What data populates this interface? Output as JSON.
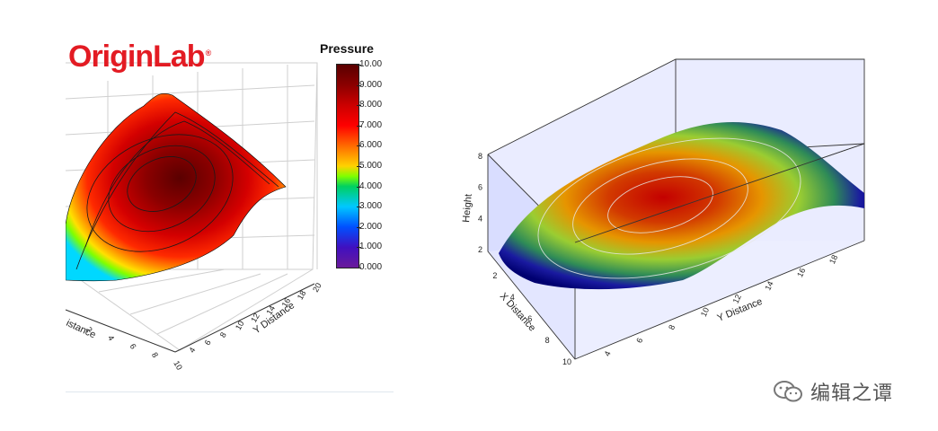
{
  "logo": {
    "text": "OriginLab",
    "mark": "®"
  },
  "watermark": {
    "text": "编辑之谭",
    "icon": "wechat-icon"
  },
  "chart_data": [
    {
      "type": "surface3d",
      "colorbar": {
        "title": "Pressure",
        "ticks": [
          "10.00",
          "9.000",
          "8.000",
          "7.000",
          "6.000",
          "5.000",
          "4.000",
          "3.000",
          "2.000",
          "1.000",
          "0.000"
        ],
        "range": [
          0,
          10
        ],
        "colors": [
          "#5a0000",
          "#cc0000",
          "#ff6a00",
          "#ffd200",
          "#7fff00",
          "#00c8ff",
          "#0050ff",
          "#6a1a9a"
        ]
      },
      "x_axis": {
        "label": "X Distance",
        "visible_label": "istance",
        "ticks": [
          "2",
          "4",
          "6",
          "8",
          "10"
        ]
      },
      "y_axis": {
        "label": "Y Distance",
        "ticks": [
          "4",
          "6",
          "8",
          "10",
          "12",
          "14",
          "16",
          "18",
          "20"
        ]
      },
      "peak_value": 10,
      "grid": true
    },
    {
      "type": "surface3d",
      "x_axis": {
        "label": "X Distance",
        "ticks": [
          "2",
          "4",
          "6",
          "8",
          "10"
        ]
      },
      "y_axis": {
        "label": "Y Distance",
        "ticks": [
          "4",
          "6",
          "8",
          "10",
          "12",
          "14",
          "16",
          "18"
        ]
      },
      "z_axis": {
        "label": "Height",
        "ticks": [
          "2",
          "4",
          "6",
          "8"
        ]
      },
      "colors": [
        "#000080",
        "#1a1aa0",
        "#2e8b57",
        "#9acd32",
        "#ffd700",
        "#ff8c00",
        "#cc1100"
      ],
      "walls": "light blue translucent"
    }
  ]
}
